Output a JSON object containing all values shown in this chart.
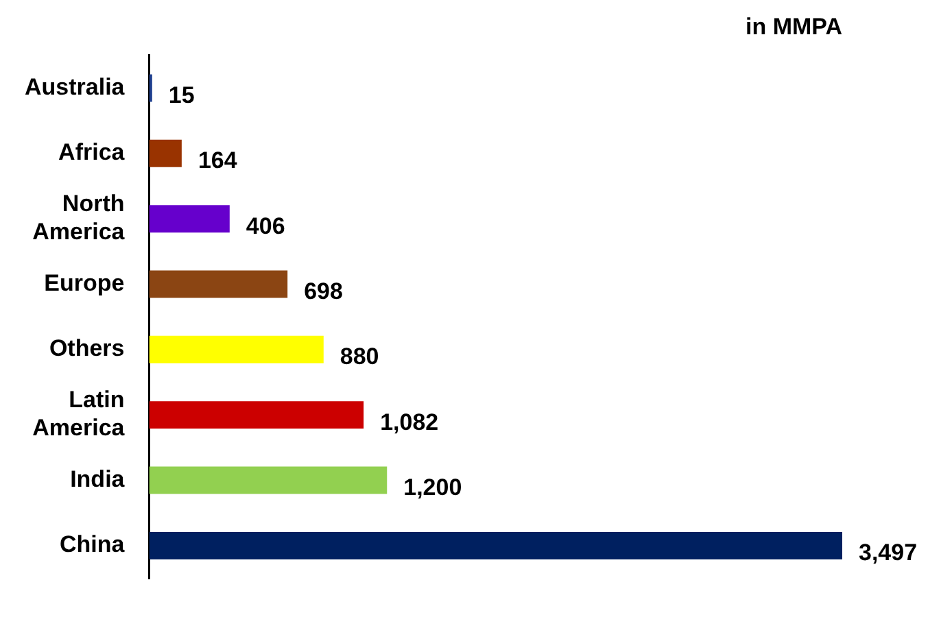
{
  "chart_data": {
    "type": "bar",
    "orientation": "horizontal",
    "title": "in MMPA",
    "categories": [
      "Australia",
      "Africa",
      "North America",
      "Europe",
      "Others",
      "Latin America",
      "India",
      "China"
    ],
    "values": [
      15,
      164,
      406,
      698,
      880,
      1082,
      1200,
      3497
    ],
    "colors": [
      "#1f3f8f",
      "#993300",
      "#6600cc",
      "#8b4513",
      "#ffff00",
      "#cc0000",
      "#92d050",
      "#002060"
    ],
    "value_labels": [
      "15",
      "164",
      "406",
      "698",
      "880",
      "1,082",
      "1,200",
      "3,497"
    ],
    "grid": false,
    "legend": false
  }
}
